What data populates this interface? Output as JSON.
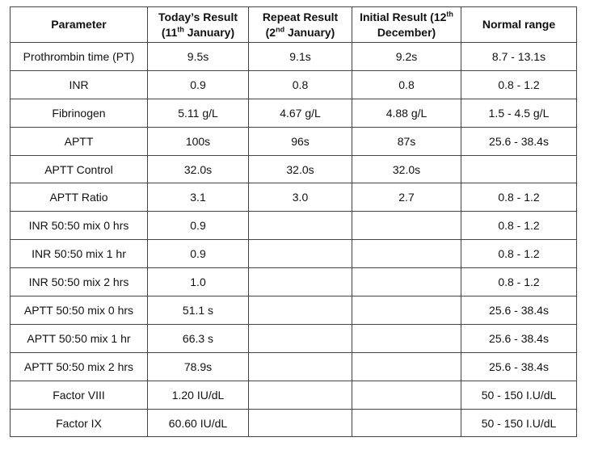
{
  "table": {
    "header": [
      [
        "Parameter"
      ],
      [
        "Today’s Result (11",
        "th",
        " January)"
      ],
      [
        "Repeat Result (2",
        "nd",
        " January)"
      ],
      [
        "Initial Result (12",
        "th",
        " December)"
      ],
      [
        "Normal range"
      ]
    ],
    "rows": [
      [
        "Prothrombin time (PT)",
        "9.5s",
        "9.1s",
        "9.2s",
        "8.7 - 13.1s"
      ],
      [
        "INR",
        "0.9",
        "0.8",
        "0.8",
        "0.8 - 1.2"
      ],
      [
        "Fibrinogen",
        "5.11 g/L",
        "4.67 g/L",
        "4.88 g/L",
        "1.5 - 4.5 g/L"
      ],
      [
        "APTT",
        "100s",
        "96s",
        "87s",
        "25.6 - 38.4s"
      ],
      [
        "APTT Control",
        "32.0s",
        "32.0s",
        "32.0s",
        null
      ],
      [
        "APTT Ratio",
        "3.1",
        "3.0",
        "2.7",
        "0.8 - 1.2"
      ],
      [
        "INR 50:50 mix 0 hrs",
        "0.9",
        null,
        null,
        "0.8 - 1.2"
      ],
      [
        "INR 50:50 mix 1 hr",
        "0.9",
        null,
        null,
        "0.8 - 1.2"
      ],
      [
        "INR 50:50 mix 2 hrs",
        "1.0",
        null,
        null,
        "0.8 - 1.2"
      ],
      [
        "APTT 50:50 mix 0 hrs",
        "51.1 s",
        null,
        null,
        "25.6 - 38.4s"
      ],
      [
        "APTT 50:50 mix 1 hr",
        "66.3 s",
        null,
        null,
        "25.6 - 38.4s"
      ],
      [
        "APTT 50:50 mix 2 hrs",
        "78.9s",
        null,
        null,
        "25.6 - 38.4s"
      ],
      [
        "Factor VIII",
        "1.20 IU/dL",
        null,
        null,
        "50 - 150 I.U/dL"
      ],
      [
        "Factor IX",
        "60.60 IU/dL",
        null,
        null,
        "50 - 150 I.U/dL"
      ]
    ]
  }
}
